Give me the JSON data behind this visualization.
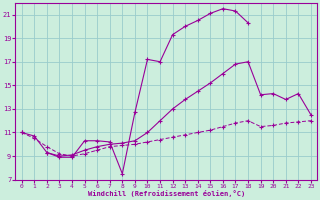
{
  "xlabel": "Windchill (Refroidissement éolien,°C)",
  "bg_color": "#cceedd",
  "line_color": "#990099",
  "grid_color": "#99cccc",
  "xlim": [
    -0.5,
    23.5
  ],
  "ylim": [
    7,
    22
  ],
  "xticks": [
    0,
    1,
    2,
    3,
    4,
    5,
    6,
    7,
    8,
    9,
    10,
    11,
    12,
    13,
    14,
    15,
    16,
    17,
    18,
    19,
    20,
    21,
    22,
    23
  ],
  "yticks": [
    7,
    9,
    11,
    13,
    15,
    17,
    19,
    21
  ],
  "line1_x": [
    0,
    1,
    2,
    3,
    4,
    5,
    6,
    7,
    8,
    9,
    10,
    11,
    12,
    13,
    14,
    15,
    16,
    17,
    18
  ],
  "line1_y": [
    11.0,
    10.7,
    9.3,
    8.9,
    8.9,
    10.3,
    10.3,
    10.2,
    7.5,
    12.7,
    17.2,
    17.0,
    19.3,
    20.0,
    20.5,
    21.1,
    21.5,
    21.3,
    20.3
  ],
  "line2_x": [
    2,
    3,
    4,
    5,
    6,
    7,
    8,
    9,
    10,
    11,
    12,
    13,
    14,
    15,
    16,
    17,
    18,
    19,
    20,
    21,
    22,
    23
  ],
  "line2_y": [
    9.3,
    9.0,
    9.1,
    9.5,
    9.8,
    10.0,
    10.1,
    10.3,
    11.0,
    12.0,
    13.0,
    13.8,
    14.5,
    15.2,
    16.0,
    16.8,
    17.0,
    14.2,
    14.3,
    13.8,
    14.3,
    12.5
  ],
  "line3_x": [
    0,
    1,
    2,
    3,
    4,
    5,
    6,
    7,
    8,
    9,
    10,
    11,
    12,
    13,
    14,
    15,
    16,
    17,
    18,
    19,
    20,
    21,
    22,
    23
  ],
  "line3_y": [
    11.0,
    10.5,
    9.8,
    9.2,
    9.0,
    9.2,
    9.5,
    9.8,
    9.9,
    10.0,
    10.2,
    10.4,
    10.6,
    10.8,
    11.0,
    11.2,
    11.5,
    11.8,
    12.0,
    11.5,
    11.6,
    11.8,
    11.9,
    12.0
  ]
}
